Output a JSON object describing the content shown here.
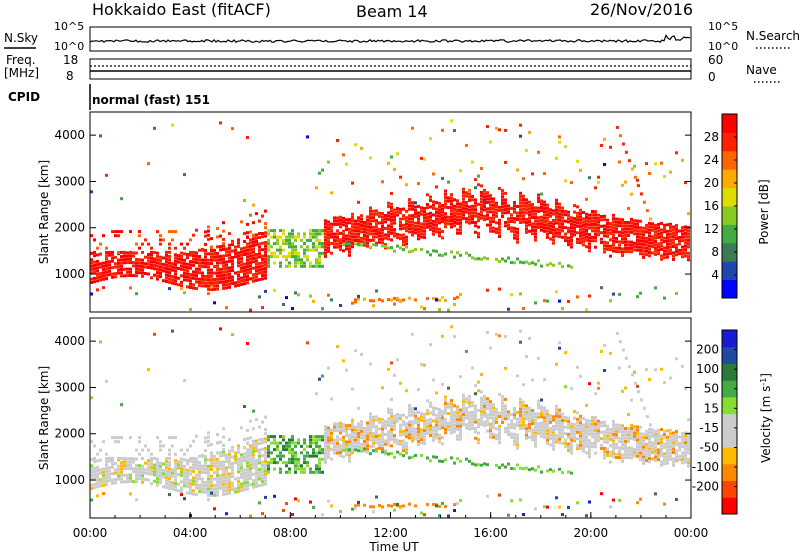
{
  "header": {
    "station": "Hokkaido East (fitACF)",
    "beam": "Beam 14",
    "date": "26/Nov/2016"
  },
  "strips": {
    "nsky_label": "N.Sky",
    "nsky_ticks": [
      "10^5",
      "10^0"
    ],
    "nsearch_label": "N.Search",
    "freq_label_line1": "Freq.",
    "freq_label_line2": "[MHz]",
    "freq_ticks": [
      "18",
      "8"
    ],
    "nave_label": "Nave",
    "nave_ticks": [
      "60",
      "0"
    ],
    "cpid_label": "CPID",
    "cpid_value": "normal (fast) 151"
  },
  "colors": {
    "power_scale": [
      "#0000ff",
      "#1f47b0",
      "#3a7a55",
      "#44aa44",
      "#88cc22",
      "#dddd00",
      "#ffaa00",
      "#ff6600",
      "#ff2200",
      "#ff0000"
    ],
    "velocity_scale": [
      "#ff0000",
      "#ff4400",
      "#ff8800",
      "#ffbb00",
      "#cccccc",
      "#cccccc",
      "#88dd33",
      "#44aa44",
      "#2a7a3a",
      "#1f4aa0",
      "#1a1ad0"
    ]
  },
  "chart_data": [
    {
      "type": "heatmap",
      "panel": "power",
      "ylabel": "Slant Range [km]",
      "yticks": [
        "1000",
        "2000",
        "3000",
        "4000"
      ],
      "ylim": [
        180,
        4500
      ],
      "xlim": [
        0,
        24
      ],
      "colorbar_label": "Power [dB]",
      "colorbar_ticks": [
        "4",
        "8",
        "12",
        "16",
        "20",
        "24",
        "28"
      ],
      "colorbar_range": [
        0,
        30
      ]
    },
    {
      "type": "heatmap",
      "panel": "velocity",
      "ylabel": "Slant Range [km]",
      "yticks": [
        "1000",
        "2000",
        "3000",
        "4000"
      ],
      "ylim": [
        180,
        4500
      ],
      "xlim": [
        0,
        24
      ],
      "colorbar_label": "Velocity [m s",
      "colorbar_sup": "-1",
      "colorbar_label_end": "]",
      "colorbar_ticks": [
        "200",
        "100",
        "50",
        "15",
        "-15",
        "-50",
        "-100",
        "-200"
      ]
    }
  ],
  "xaxis": {
    "ticks": [
      "00:00",
      "04:00",
      "08:00",
      "12:00",
      "16:00",
      "20:00",
      "00:00"
    ],
    "label": "Time UT"
  }
}
